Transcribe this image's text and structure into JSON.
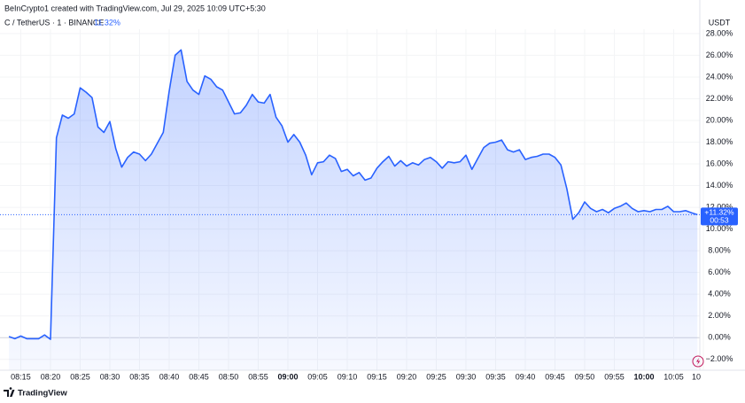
{
  "chart_data": {
    "type": "area",
    "title": "BeInCrypto1 created with TradingView.com, Jul 29, 2025 10:09 UTC+5:30",
    "symbol": "C / TetherUS · 1 · BINANCE",
    "header_change": "11.32%",
    "currency": "USDT",
    "last_value_label": "+11.32%",
    "countdown": "00:53",
    "brand": "TradingView",
    "x": [
      "08:13",
      "08:14",
      "08:15",
      "08:16",
      "08:17",
      "08:18",
      "08:19",
      "08:20",
      "08:21",
      "08:22",
      "08:23",
      "08:24",
      "08:25",
      "08:26",
      "08:27",
      "08:28",
      "08:29",
      "08:30",
      "08:31",
      "08:32",
      "08:33",
      "08:34",
      "08:35",
      "08:36",
      "08:37",
      "08:38",
      "08:39",
      "08:40",
      "08:41",
      "08:42",
      "08:43",
      "08:44",
      "08:45",
      "08:46",
      "08:47",
      "08:48",
      "08:49",
      "08:50",
      "08:51",
      "08:52",
      "08:53",
      "08:54",
      "08:55",
      "08:56",
      "08:57",
      "08:58",
      "08:59",
      "09:00",
      "09:01",
      "09:02",
      "09:03",
      "09:04",
      "09:05",
      "09:06",
      "09:07",
      "09:08",
      "09:09",
      "09:10",
      "09:11",
      "09:12",
      "09:13",
      "09:14",
      "09:15",
      "09:16",
      "09:17",
      "09:18",
      "09:19",
      "09:20",
      "09:21",
      "09:22",
      "09:23",
      "09:24",
      "09:25",
      "09:26",
      "09:27",
      "09:28",
      "09:29",
      "09:30",
      "09:31",
      "09:32",
      "09:33",
      "09:34",
      "09:35",
      "09:36",
      "09:37",
      "09:38",
      "09:39",
      "09:40",
      "09:41",
      "09:42",
      "09:43",
      "09:44",
      "09:45",
      "09:46",
      "09:47",
      "09:48",
      "09:49",
      "09:50",
      "09:51",
      "09:52",
      "09:53",
      "09:54",
      "09:55",
      "09:56",
      "09:57",
      "09:58",
      "09:59",
      "10:00",
      "10:01",
      "10:02",
      "10:03",
      "10:04",
      "10:05",
      "10:06",
      "10:07",
      "10:08",
      "10:09"
    ],
    "series": [
      {
        "name": "C / TetherUS",
        "color": "#2962ff",
        "values": [
          0.1,
          -0.1,
          0.15,
          -0.1,
          -0.1,
          -0.1,
          0.25,
          -0.15,
          18.4,
          20.5,
          20.2,
          20.6,
          23.0,
          22.6,
          22.1,
          19.4,
          18.9,
          19.9,
          17.4,
          15.7,
          16.6,
          17.1,
          16.9,
          16.3,
          16.9,
          17.9,
          18.9,
          22.7,
          26.0,
          26.5,
          23.6,
          22.8,
          22.4,
          24.1,
          23.8,
          23.1,
          22.8,
          21.7,
          20.6,
          20.7,
          21.4,
          22.4,
          21.7,
          21.6,
          22.4,
          20.3,
          19.5,
          18.0,
          18.7,
          18.0,
          16.8,
          15.0,
          16.1,
          16.2,
          16.8,
          16.5,
          15.3,
          15.5,
          14.9,
          15.2,
          14.5,
          14.7,
          15.6,
          16.2,
          16.7,
          15.8,
          16.3,
          15.8,
          16.1,
          15.9,
          16.4,
          16.6,
          16.2,
          15.6,
          16.2,
          16.1,
          16.2,
          16.8,
          15.5,
          16.5,
          17.5,
          17.9,
          18.0,
          18.2,
          17.3,
          17.1,
          17.3,
          16.4,
          16.6,
          16.7,
          16.9,
          16.9,
          16.6,
          15.9,
          13.7,
          10.9,
          11.5,
          12.5,
          11.9,
          11.6,
          11.8,
          11.5,
          11.9,
          12.1,
          12.4,
          11.9,
          11.6,
          11.7,
          11.6,
          11.8,
          11.8,
          12.1,
          11.6,
          11.6,
          11.7,
          11.5,
          11.32
        ]
      }
    ],
    "xlim": [
      "08:11:30",
      "10:09:24"
    ],
    "xticks": [
      "08:15",
      "08:20",
      "08:25",
      "08:30",
      "08:35",
      "08:40",
      "08:45",
      "08:50",
      "08:55",
      "09:00",
      "09:05",
      "09:10",
      "09:15",
      "09:20",
      "09:25",
      "09:30",
      "09:35",
      "09:40",
      "09:45",
      "09:50",
      "09:55",
      "10:00",
      "10:05",
      {
        "value": "10:10",
        "label": "10"
      }
    ],
    "ylim": [
      -3,
      28.4
    ],
    "yticks": [
      {
        "value": -2,
        "label": "−2.00%"
      },
      {
        "value": 0,
        "label": "0.00%"
      },
      {
        "value": 2,
        "label": "2.00%"
      },
      {
        "value": 4,
        "label": "4.00%"
      },
      {
        "value": 6,
        "label": "6.00%"
      },
      {
        "value": 8,
        "label": "8.00%"
      },
      {
        "value": 10,
        "label": "10.00%"
      },
      {
        "value": 12,
        "label": "12.00%"
      },
      {
        "value": 14,
        "label": "14.00%"
      },
      {
        "value": 16,
        "label": "16.00%"
      },
      {
        "value": 18,
        "label": "18.00%"
      },
      {
        "value": 20,
        "label": "20.00%"
      },
      {
        "value": 22,
        "label": "22.00%"
      },
      {
        "value": 24,
        "label": "24.00%"
      },
      {
        "value": 26,
        "label": "26.00%"
      },
      {
        "value": 28,
        "label": "28.00%"
      }
    ],
    "grid": true
  }
}
